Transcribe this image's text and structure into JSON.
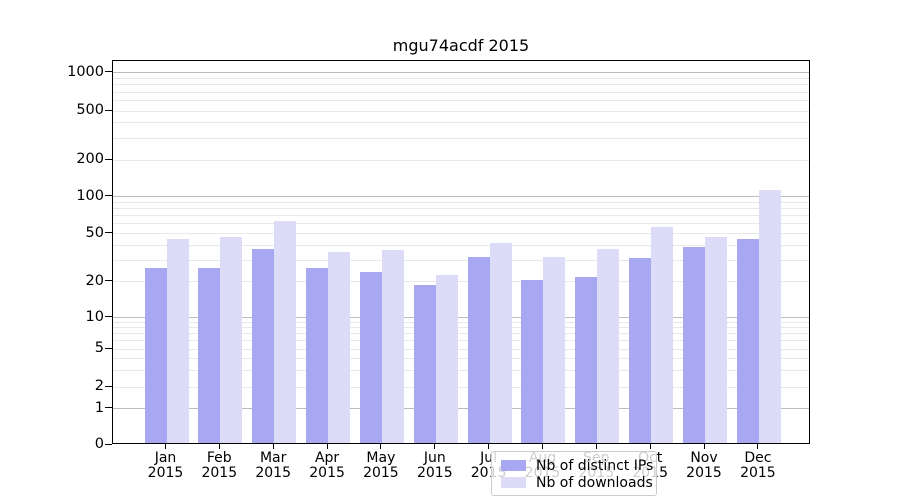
{
  "title": "mgu74acdf 2015",
  "chart_data": {
    "type": "bar",
    "title": "mgu74acdf 2015",
    "categories": [
      "Jan",
      "Feb",
      "Mar",
      "Apr",
      "May",
      "Jun",
      "Jul",
      "Aug",
      "Sep",
      "Oct",
      "Nov",
      "Dec"
    ],
    "category_year": "2015",
    "series": [
      {
        "name": "Nb of distinct IPs",
        "color": "#a7a7f2",
        "values": [
          25,
          25,
          36,
          25,
          23,
          18,
          31,
          20,
          21,
          30,
          37,
          43
        ]
      },
      {
        "name": "Nb of downloads",
        "color": "#dcdcf8",
        "values": [
          43,
          45,
          61,
          34,
          35,
          22,
          40,
          31,
          36,
          54,
          45,
          108
        ]
      }
    ],
    "yticks": [
      0,
      1,
      2,
      5,
      10,
      20,
      50,
      100,
      200,
      500,
      1000
    ],
    "major_grid_values": [
      1,
      10,
      100,
      1000
    ],
    "minor_grid_values": [
      2,
      5,
      20,
      50,
      200,
      500,
      3,
      4,
      6,
      7,
      8,
      9,
      30,
      40,
      60,
      70,
      80,
      90,
      300,
      400,
      600,
      700,
      800,
      900
    ],
    "ylim": [
      0,
      1240
    ],
    "grid": true,
    "legend_position": "lower-center",
    "scale_note": "quasi-logarithmic y scale with zero baseline",
    "ytick_pixel_anchors": [
      [
        0,
        444
      ],
      [
        1,
        407.5
      ],
      [
        2,
        386
      ],
      [
        5,
        348
      ],
      [
        10,
        316.5
      ],
      [
        20,
        280.5
      ],
      [
        50,
        232.5
      ],
      [
        100,
        195.5
      ],
      [
        200,
        159
      ],
      [
        500,
        110
      ],
      [
        1000,
        71.5
      ]
    ]
  },
  "colors": {
    "bar_distinct_ips": "#a7a7f2",
    "bar_downloads": "#dcdcf8",
    "grid_major": "#bcbcbc",
    "grid_minor": "#e8e8e8",
    "axis": "#000000",
    "background": "#ffffff",
    "legend_border": "#cccccc"
  }
}
